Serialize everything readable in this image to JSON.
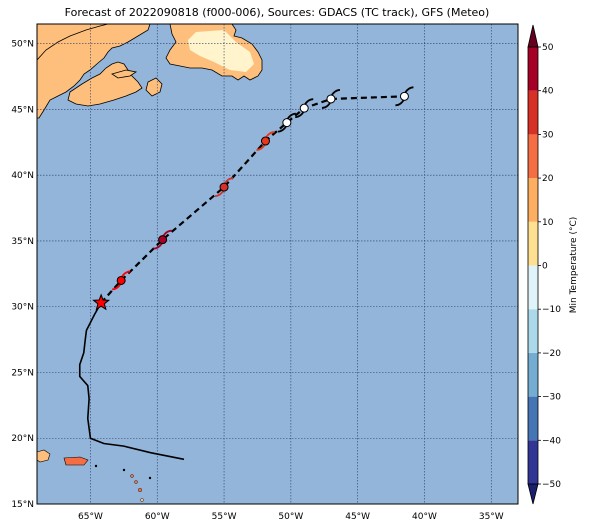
{
  "title": "Forecast of 2022090818 (f000-006), Sources: GDACS (TC track), GFS (Meteo)",
  "map": {
    "lon_range": [
      -69,
      -33
    ],
    "lat_range": [
      15,
      51.5
    ],
    "ocean_color": "#92b5d9",
    "land_color": "#fdbf7b",
    "grid": true,
    "lat_ticks": [
      {
        "value": 50,
        "label": "50°N"
      },
      {
        "value": 45,
        "label": "45°N"
      },
      {
        "value": 40,
        "label": "40°N"
      },
      {
        "value": 35,
        "label": "35°N"
      },
      {
        "value": 30,
        "label": "30°N"
      },
      {
        "value": 25,
        "label": "25°N"
      },
      {
        "value": 20,
        "label": "20°N"
      },
      {
        "value": 15,
        "label": "15°N"
      }
    ],
    "lon_ticks": [
      {
        "value": -65,
        "label": "65°W"
      },
      {
        "value": -60,
        "label": "60°W"
      },
      {
        "value": -55,
        "label": "55°W"
      },
      {
        "value": -50,
        "label": "50°W"
      },
      {
        "value": -45,
        "label": "45°W"
      },
      {
        "value": -40,
        "label": "40°W"
      },
      {
        "value": -35,
        "label": "35°W"
      }
    ]
  },
  "track": {
    "past": [
      [
        -58.0,
        18.4
      ],
      [
        -60.5,
        18.9
      ],
      [
        -62.5,
        19.4
      ],
      [
        -64.0,
        19.6
      ],
      [
        -65.0,
        20.0
      ],
      [
        -65.2,
        21.5
      ],
      [
        -65.1,
        23.0
      ],
      [
        -65.2,
        24.0
      ],
      [
        -65.8,
        24.7
      ],
      [
        -65.8,
        25.6
      ],
      [
        -65.5,
        26.5
      ],
      [
        -65.4,
        27.4
      ],
      [
        -65.3,
        28.2
      ],
      [
        -64.7,
        29.4
      ],
      [
        -64.2,
        30.3
      ]
    ],
    "current": [
      -64.2,
      30.3
    ],
    "forecast": [
      {
        "lon": -64.2,
        "lat": 30.3,
        "color": "#ff0000"
      },
      {
        "lon": -62.7,
        "lat": 32.0,
        "color": "#ff0000"
      },
      {
        "lon": -59.6,
        "lat": 35.1,
        "color": "#a50026"
      },
      {
        "lon": -55.0,
        "lat": 39.1,
        "color": "#d73027"
      },
      {
        "lon": -51.9,
        "lat": 42.6,
        "color": "#e8371b"
      },
      {
        "lon": -50.3,
        "lat": 44.0,
        "color": "#ffffff"
      },
      {
        "lon": -49.0,
        "lat": 45.1,
        "color": "#ffffff"
      },
      {
        "lon": -47.0,
        "lat": 45.8,
        "color": "#ffffff"
      },
      {
        "lon": -41.5,
        "lat": 46.0,
        "color": "#ffffff"
      }
    ]
  },
  "colorbar": {
    "label": "Min Temperature (°C)",
    "ticks": [
      -50,
      -40,
      -30,
      -20,
      -10,
      0,
      10,
      20,
      30,
      40,
      50
    ],
    "tick_labels": [
      "−50",
      "−40",
      "−30",
      "−20",
      "−10",
      "0",
      "10",
      "20",
      "30",
      "40",
      "50"
    ],
    "colors": [
      "#313695",
      "#4575b4",
      "#74add1",
      "#abd9e9",
      "#e0f3f8",
      "#fee090",
      "#fdae61",
      "#f46d43",
      "#d73027",
      "#a50026"
    ],
    "extend_low_color": "#1a1f6e",
    "extend_high_color": "#67001f"
  }
}
